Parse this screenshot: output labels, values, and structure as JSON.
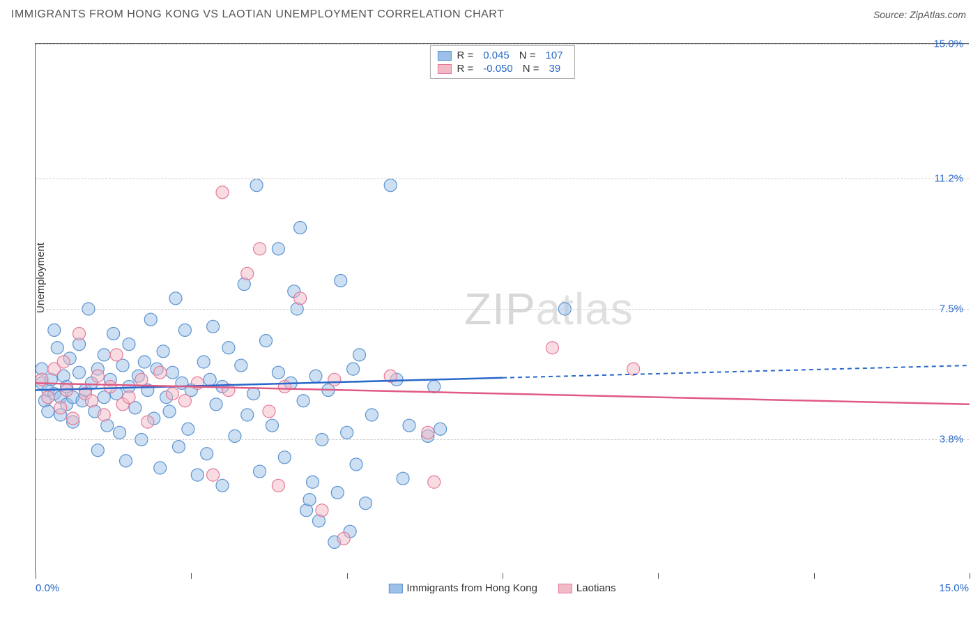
{
  "header": {
    "title": "IMMIGRANTS FROM HONG KONG VS LAOTIAN UNEMPLOYMENT CORRELATION CHART",
    "source": "Source: ZipAtlas.com"
  },
  "chart": {
    "type": "scatter",
    "ylabel": "Unemployment",
    "xlim": [
      0,
      15
    ],
    "ylim": [
      0,
      15
    ],
    "yticks": [
      3.8,
      7.5,
      11.2,
      15.0
    ],
    "ytick_labels": [
      "3.8%",
      "7.5%",
      "11.2%",
      "15.0%"
    ],
    "xticks": [
      0,
      2.5,
      5,
      7.5,
      10,
      12.5,
      15
    ],
    "x_left_label": "0.0%",
    "x_right_label": "15.0%",
    "background_color": "#ffffff",
    "grid_color": "#cccccc",
    "axis_color": "#555555",
    "marker_radius": 9,
    "marker_opacity": 0.5,
    "marker_stroke_width": 1.2,
    "line_width": 2.5,
    "watermark": "ZIPatlas"
  },
  "series": [
    {
      "name": "Immigrants from Hong Kong",
      "color_fill": "#9cc0e7",
      "color_stroke": "#5b93d0",
      "line_color": "#2968c8",
      "R": "0.045",
      "N": "107",
      "trend": {
        "x1": 0,
        "y1": 5.2,
        "x2": 15,
        "y2": 5.9,
        "solid_until_x": 7.5
      },
      "points": [
        [
          0.1,
          5.4
        ],
        [
          0.1,
          5.8
        ],
        [
          0.15,
          4.9
        ],
        [
          0.2,
          5.2
        ],
        [
          0.2,
          4.6
        ],
        [
          0.25,
          5.5
        ],
        [
          0.3,
          6.9
        ],
        [
          0.3,
          5.1
        ],
        [
          0.35,
          6.4
        ],
        [
          0.4,
          5.0
        ],
        [
          0.4,
          4.5
        ],
        [
          0.45,
          5.6
        ],
        [
          0.5,
          5.3
        ],
        [
          0.5,
          4.8
        ],
        [
          0.55,
          6.1
        ],
        [
          0.6,
          5.0
        ],
        [
          0.6,
          4.3
        ],
        [
          0.7,
          5.7
        ],
        [
          0.7,
          6.5
        ],
        [
          0.75,
          4.9
        ],
        [
          0.8,
          5.2
        ],
        [
          0.85,
          7.5
        ],
        [
          0.9,
          5.4
        ],
        [
          0.95,
          4.6
        ],
        [
          1.0,
          5.8
        ],
        [
          1.0,
          3.5
        ],
        [
          1.1,
          6.2
        ],
        [
          1.1,
          5.0
        ],
        [
          1.15,
          4.2
        ],
        [
          1.2,
          5.5
        ],
        [
          1.25,
          6.8
        ],
        [
          1.3,
          5.1
        ],
        [
          1.35,
          4.0
        ],
        [
          1.4,
          5.9
        ],
        [
          1.45,
          3.2
        ],
        [
          1.5,
          5.3
        ],
        [
          1.5,
          6.5
        ],
        [
          1.6,
          4.7
        ],
        [
          1.65,
          5.6
        ],
        [
          1.7,
          3.8
        ],
        [
          1.75,
          6.0
        ],
        [
          1.8,
          5.2
        ],
        [
          1.85,
          7.2
        ],
        [
          1.9,
          4.4
        ],
        [
          1.95,
          5.8
        ],
        [
          2.0,
          3.0
        ],
        [
          2.05,
          6.3
        ],
        [
          2.1,
          5.0
        ],
        [
          2.15,
          4.6
        ],
        [
          2.2,
          5.7
        ],
        [
          2.25,
          7.8
        ],
        [
          2.3,
          3.6
        ],
        [
          2.35,
          5.4
        ],
        [
          2.4,
          6.9
        ],
        [
          2.45,
          4.1
        ],
        [
          2.5,
          5.2
        ],
        [
          2.6,
          2.8
        ],
        [
          2.7,
          6.0
        ],
        [
          2.75,
          3.4
        ],
        [
          2.8,
          5.5
        ],
        [
          2.85,
          7.0
        ],
        [
          2.9,
          4.8
        ],
        [
          3.0,
          5.3
        ],
        [
          3.0,
          2.5
        ],
        [
          3.1,
          6.4
        ],
        [
          3.2,
          3.9
        ],
        [
          3.3,
          5.9
        ],
        [
          3.35,
          8.2
        ],
        [
          3.4,
          4.5
        ],
        [
          3.5,
          5.1
        ],
        [
          3.55,
          11.0
        ],
        [
          3.6,
          2.9
        ],
        [
          3.7,
          6.6
        ],
        [
          3.8,
          4.2
        ],
        [
          3.9,
          5.7
        ],
        [
          3.9,
          9.2
        ],
        [
          4.0,
          3.3
        ],
        [
          4.1,
          5.4
        ],
        [
          4.15,
          8.0
        ],
        [
          4.2,
          7.5
        ],
        [
          4.25,
          9.8
        ],
        [
          4.3,
          4.9
        ],
        [
          4.35,
          1.8
        ],
        [
          4.4,
          2.1
        ],
        [
          4.45,
          2.6
        ],
        [
          4.5,
          5.6
        ],
        [
          4.55,
          1.5
        ],
        [
          4.6,
          3.8
        ],
        [
          4.7,
          5.2
        ],
        [
          4.8,
          0.9
        ],
        [
          4.85,
          2.3
        ],
        [
          4.9,
          8.3
        ],
        [
          5.0,
          4.0
        ],
        [
          5.05,
          1.2
        ],
        [
          5.1,
          5.8
        ],
        [
          5.15,
          3.1
        ],
        [
          5.2,
          6.2
        ],
        [
          5.3,
          2.0
        ],
        [
          5.4,
          4.5
        ],
        [
          5.7,
          11.0
        ],
        [
          5.8,
          5.5
        ],
        [
          5.9,
          2.7
        ],
        [
          6.0,
          4.2
        ],
        [
          6.3,
          3.9
        ],
        [
          6.4,
          5.3
        ],
        [
          6.5,
          4.1
        ],
        [
          8.5,
          7.5
        ]
      ]
    },
    {
      "name": "Laotians",
      "color_fill": "#f2b9c6",
      "color_stroke": "#e47a98",
      "line_color": "#e05a84",
      "R": "-0.050",
      "N": "39",
      "trend": {
        "x1": 0,
        "y1": 5.4,
        "x2": 15,
        "y2": 4.8,
        "solid_until_x": 15
      },
      "points": [
        [
          0.1,
          5.5
        ],
        [
          0.2,
          5.0
        ],
        [
          0.3,
          5.8
        ],
        [
          0.4,
          4.7
        ],
        [
          0.45,
          6.0
        ],
        [
          0.5,
          5.2
        ],
        [
          0.6,
          4.4
        ],
        [
          0.7,
          6.8
        ],
        [
          0.8,
          5.1
        ],
        [
          0.9,
          4.9
        ],
        [
          1.0,
          5.6
        ],
        [
          1.1,
          4.5
        ],
        [
          1.2,
          5.3
        ],
        [
          1.3,
          6.2
        ],
        [
          1.4,
          4.8
        ],
        [
          1.5,
          5.0
        ],
        [
          1.7,
          5.5
        ],
        [
          1.8,
          4.3
        ],
        [
          2.0,
          5.7
        ],
        [
          2.2,
          5.1
        ],
        [
          2.4,
          4.9
        ],
        [
          2.6,
          5.4
        ],
        [
          2.85,
          2.8
        ],
        [
          3.0,
          10.8
        ],
        [
          3.1,
          5.2
        ],
        [
          3.4,
          8.5
        ],
        [
          3.6,
          9.2
        ],
        [
          3.75,
          4.6
        ],
        [
          3.9,
          2.5
        ],
        [
          4.0,
          5.3
        ],
        [
          4.25,
          7.8
        ],
        [
          4.6,
          1.8
        ],
        [
          4.8,
          5.5
        ],
        [
          4.95,
          1.0
        ],
        [
          5.7,
          5.6
        ],
        [
          6.3,
          4.0
        ],
        [
          6.4,
          2.6
        ],
        [
          8.3,
          6.4
        ],
        [
          9.6,
          5.8
        ]
      ]
    }
  ],
  "legend_bottom": [
    {
      "label": "Immigrants from Hong Kong",
      "series_idx": 0
    },
    {
      "label": "Laotians",
      "series_idx": 1
    }
  ]
}
